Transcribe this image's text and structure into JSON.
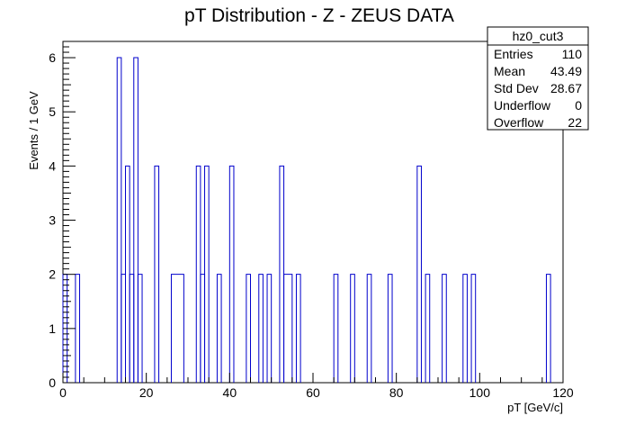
{
  "chart_data": {
    "type": "bar",
    "style": "step-histogram",
    "title": "pT Distribution - Z - ZEUS DATA",
    "xlabel": "pT [GeV/c]",
    "ylabel": "Events / 1 GeV",
    "xlim": [
      0,
      120
    ],
    "ylim": [
      0,
      6.3
    ],
    "xticks": [
      0,
      20,
      40,
      60,
      80,
      100,
      120
    ],
    "yticks": [
      0,
      1,
      2,
      3,
      4,
      5,
      6
    ],
    "grid": false,
    "line_color": "#0000cc",
    "bins": [
      {
        "x0": 0,
        "x1": 1,
        "value": 2
      },
      {
        "x0": 3,
        "x1": 4,
        "value": 2
      },
      {
        "x0": 13,
        "x1": 14,
        "value": 6
      },
      {
        "x0": 14,
        "x1": 15,
        "value": 2
      },
      {
        "x0": 15,
        "x1": 16,
        "value": 4
      },
      {
        "x0": 16,
        "x1": 17,
        "value": 2
      },
      {
        "x0": 17,
        "x1": 18,
        "value": 6
      },
      {
        "x0": 18,
        "x1": 19,
        "value": 2
      },
      {
        "x0": 22,
        "x1": 23,
        "value": 4
      },
      {
        "x0": 26,
        "x1": 29,
        "value": 2
      },
      {
        "x0": 32,
        "x1": 33,
        "value": 4
      },
      {
        "x0": 33,
        "x1": 34,
        "value": 2
      },
      {
        "x0": 34,
        "x1": 35,
        "value": 4
      },
      {
        "x0": 37,
        "x1": 38,
        "value": 2
      },
      {
        "x0": 40,
        "x1": 41,
        "value": 4
      },
      {
        "x0": 44,
        "x1": 45,
        "value": 2
      },
      {
        "x0": 47,
        "x1": 48,
        "value": 2
      },
      {
        "x0": 49,
        "x1": 50,
        "value": 2
      },
      {
        "x0": 52,
        "x1": 53,
        "value": 4
      },
      {
        "x0": 53,
        "x1": 55,
        "value": 2
      },
      {
        "x0": 56,
        "x1": 57,
        "value": 2
      },
      {
        "x0": 65,
        "x1": 66,
        "value": 2
      },
      {
        "x0": 69,
        "x1": 70,
        "value": 2
      },
      {
        "x0": 73,
        "x1": 74,
        "value": 2
      },
      {
        "x0": 78,
        "x1": 79,
        "value": 2
      },
      {
        "x0": 85,
        "x1": 86,
        "value": 4
      },
      {
        "x0": 87,
        "x1": 88,
        "value": 2
      },
      {
        "x0": 91,
        "x1": 92,
        "value": 2
      },
      {
        "x0": 96,
        "x1": 97,
        "value": 2
      },
      {
        "x0": 98,
        "x1": 99,
        "value": 2
      },
      {
        "x0": 116,
        "x1": 117,
        "value": 2
      }
    ]
  },
  "stats_box": {
    "name": "hz0_cut3",
    "rows": [
      {
        "label": "Entries",
        "value": "110"
      },
      {
        "label": "Mean",
        "value": "43.49"
      },
      {
        "label": "Std Dev",
        "value": "28.67"
      },
      {
        "label": "Underflow",
        "value": "0"
      },
      {
        "label": "Overflow",
        "value": "22"
      }
    ]
  }
}
